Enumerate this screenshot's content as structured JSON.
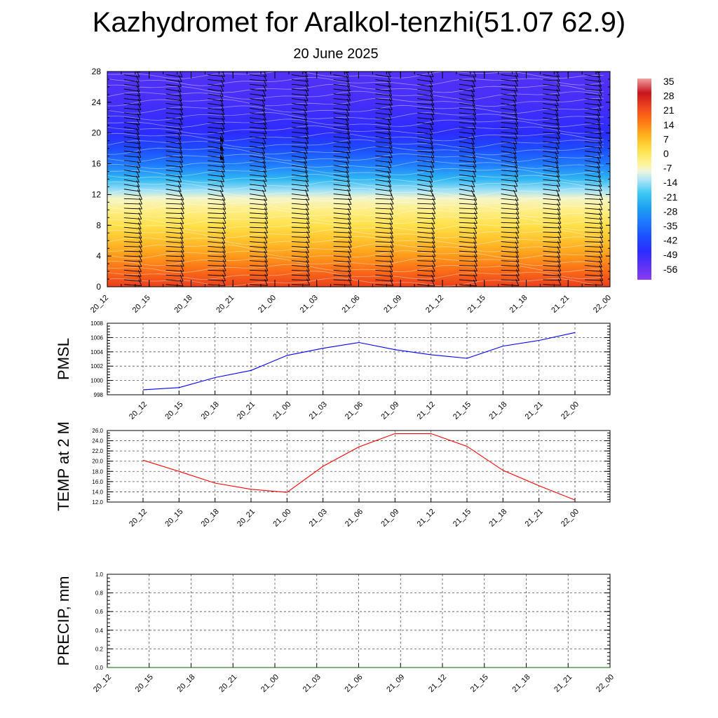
{
  "title": "Kazhydromet for Aralkol-tenzhi(51.07 62.9)",
  "subtitle": "20 June 2025",
  "chart_data": [
    {
      "type": "heatmap",
      "name": "temperature-cross-section",
      "xlabel": "",
      "ylabel": "",
      "xticks": [
        "20_12",
        "20_15",
        "20_18",
        "20_21",
        "21_00",
        "21_03",
        "21_06",
        "21_09",
        "21_12",
        "21_15",
        "21_18",
        "21_21",
        "22_00"
      ],
      "yticks": [
        0,
        4,
        8,
        12,
        16,
        20,
        24,
        28
      ],
      "ylim": [
        0,
        28
      ],
      "colorbar_labels": [
        "35",
        "28",
        "21",
        "14",
        "7",
        "0",
        "-7",
        "-14",
        "-21",
        "-28",
        "-35",
        "-42",
        "-49",
        "-56"
      ],
      "level_temperatures": [
        {
          "level": 0,
          "value": 22
        },
        {
          "level": 2,
          "value": 16
        },
        {
          "level": 4,
          "value": 10
        },
        {
          "level": 6,
          "value": 5
        },
        {
          "level": 8,
          "value": 0
        },
        {
          "level": 10,
          "value": -5
        },
        {
          "level": 11.5,
          "value": -9
        },
        {
          "level": 12.5,
          "value": -15
        },
        {
          "level": 14,
          "value": -24
        },
        {
          "level": 16,
          "value": -35
        },
        {
          "level": 18,
          "value": -43
        },
        {
          "level": 20,
          "value": -49
        },
        {
          "level": 24,
          "value": -53
        },
        {
          "level": 28,
          "value": -55
        }
      ]
    },
    {
      "type": "line",
      "name": "pmsl",
      "ylabel": "PMSL",
      "xlabel": "",
      "categories": [
        "20_12",
        "20_15",
        "20_18",
        "20_21",
        "21_00",
        "21_03",
        "21_06",
        "21_09",
        "21_12",
        "21_15",
        "21_18",
        "21_21",
        "22_00"
      ],
      "values": [
        998.7,
        999.0,
        1000.4,
        1001.4,
        1003.5,
        1004.5,
        1005.3,
        1004.3,
        1003.6,
        1003.1,
        1004.8,
        1005.6,
        1006.7
      ],
      "ylim": [
        998,
        1008
      ],
      "yticks": [
        "998",
        "1000",
        "1002",
        "1004",
        "1006",
        "1008"
      ],
      "color": "#0000ff",
      "grid": true
    },
    {
      "type": "line",
      "name": "temp-2m",
      "ylabel": "TEMP at 2 M",
      "xlabel": "",
      "categories": [
        "20_12",
        "20_15",
        "20_18",
        "20_21",
        "21_00",
        "21_03",
        "21_06",
        "21_09",
        "21_12",
        "21_15",
        "21_18",
        "21_21",
        "22_00"
      ],
      "values": [
        20.2,
        18.0,
        15.7,
        14.5,
        13.9,
        19.0,
        22.8,
        25.4,
        25.4,
        22.9,
        18.2,
        15.2,
        12.4
      ],
      "ylim": [
        12,
        26
      ],
      "yticks": [
        "12.0",
        "14.0",
        "16.0",
        "18.0",
        "20.0",
        "22.0",
        "24.0",
        "26.0"
      ],
      "color": "#ff0000",
      "grid": true
    },
    {
      "type": "line",
      "name": "precip",
      "ylabel": "PRECIP, mm",
      "xlabel": "",
      "categories": [
        "20_12",
        "20_15",
        "20_18",
        "20_21",
        "21_00",
        "21_03",
        "21_06",
        "21_09",
        "21_12",
        "21_15",
        "21_18",
        "21_21",
        "22_00"
      ],
      "values": [
        0,
        0,
        0,
        0,
        0,
        0,
        0,
        0,
        0,
        0,
        0,
        0,
        0
      ],
      "ylim": [
        0,
        1
      ],
      "yticks": [
        "0.0",
        "0.2",
        "0.4",
        "0.6",
        "0.8",
        "1.0"
      ],
      "color": "#006400",
      "grid": true
    }
  ]
}
